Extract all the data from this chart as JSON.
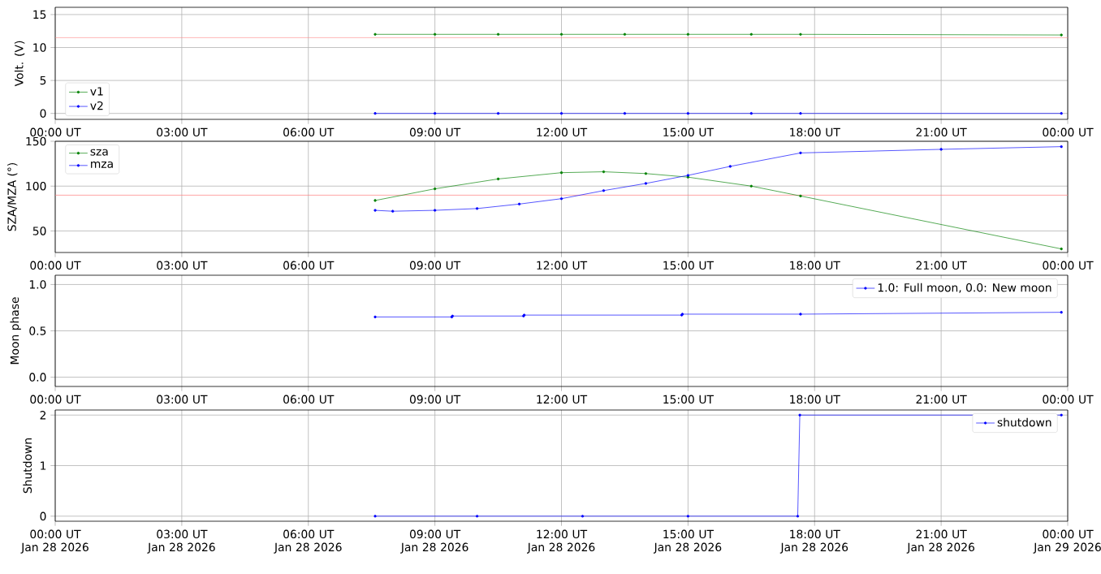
{
  "chart_data": [
    {
      "type": "line",
      "ylabel": "Volt. (V)",
      "xlim": [
        "2026-01-28T00:00",
        "2026-01-29T00:00"
      ],
      "ylim": [
        -0.9,
        16.1
      ],
      "grid": true,
      "legend": "bottom left",
      "marker": "circle",
      "line_style": "solid",
      "xticks": [
        {
          "value": "2026-01-28T00:00",
          "label": "00:00 UT"
        },
        {
          "value": "2026-01-28T03:00",
          "label": "03:00 UT"
        },
        {
          "value": "2026-01-28T06:00",
          "label": "06:00 UT"
        },
        {
          "value": "2026-01-28T09:00",
          "label": "09:00 UT"
        },
        {
          "value": "2026-01-28T12:00",
          "label": "12:00 UT"
        },
        {
          "value": "2026-01-28T15:00",
          "label": "15:00 UT"
        },
        {
          "value": "2026-01-28T18:00",
          "label": "18:00 UT"
        },
        {
          "value": "2026-01-28T21:00",
          "label": "21:00 UT"
        },
        {
          "value": "2026-01-29T00:00",
          "label": "00:00 UT"
        }
      ],
      "yticks": [
        0,
        5,
        10,
        15
      ],
      "ref_lines": [
        {
          "axis": "y",
          "value": 11.5,
          "color": "#ff8080"
        }
      ],
      "series": [
        {
          "name": "v1",
          "color": "#008000",
          "x": [
            "2026-01-28T07:35",
            "2026-01-28T09:00",
            "2026-01-28T10:30",
            "2026-01-28T12:00",
            "2026-01-28T13:30",
            "2026-01-28T15:00",
            "2026-01-28T16:30",
            "2026-01-28T17:40",
            "2026-01-28T23:51"
          ],
          "values": [
            12,
            12,
            12,
            12,
            12,
            12,
            12,
            12,
            11.9
          ]
        },
        {
          "name": "v2",
          "color": "#0000ff",
          "x": [
            "2026-01-28T07:35",
            "2026-01-28T09:00",
            "2026-01-28T10:30",
            "2026-01-28T12:00",
            "2026-01-28T13:30",
            "2026-01-28T15:00",
            "2026-01-28T16:30",
            "2026-01-28T17:40",
            "2026-01-28T23:51"
          ],
          "values": [
            0,
            0,
            0,
            0,
            0,
            0,
            0,
            0,
            0
          ]
        }
      ]
    },
    {
      "type": "line",
      "ylabel": "SZA/MZA (°)",
      "xlim": [
        "2026-01-28T00:00",
        "2026-01-29T00:00"
      ],
      "ylim": [
        26,
        150
      ],
      "grid": true,
      "legend": "top left",
      "marker": "circle",
      "line_style": "solid",
      "xticks": [
        {
          "value": "2026-01-28T00:00",
          "label": "00:00 UT"
        },
        {
          "value": "2026-01-28T03:00",
          "label": "03:00 UT"
        },
        {
          "value": "2026-01-28T06:00",
          "label": "06:00 UT"
        },
        {
          "value": "2026-01-28T09:00",
          "label": "09:00 UT"
        },
        {
          "value": "2026-01-28T12:00",
          "label": "12:00 UT"
        },
        {
          "value": "2026-01-28T15:00",
          "label": "15:00 UT"
        },
        {
          "value": "2026-01-28T18:00",
          "label": "18:00 UT"
        },
        {
          "value": "2026-01-28T21:00",
          "label": "21:00 UT"
        },
        {
          "value": "2026-01-29T00:00",
          "label": "00:00 UT"
        }
      ],
      "yticks": [
        50,
        100,
        150
      ],
      "ref_lines": [
        {
          "axis": "y",
          "value": 90,
          "color": "#ff8080"
        }
      ],
      "series": [
        {
          "name": "sza",
          "color": "#008000",
          "x": [
            "2026-01-28T07:35",
            "2026-01-28T09:00",
            "2026-01-28T10:30",
            "2026-01-28T12:00",
            "2026-01-28T13:00",
            "2026-01-28T14:00",
            "2026-01-28T15:00",
            "2026-01-28T16:30",
            "2026-01-28T17:40",
            "2026-01-28T23:51"
          ],
          "values": [
            84,
            97,
            108,
            115,
            116,
            114,
            110,
            100,
            89,
            30
          ]
        },
        {
          "name": "mza",
          "color": "#0000ff",
          "x": [
            "2026-01-28T07:35",
            "2026-01-28T08:00",
            "2026-01-28T09:00",
            "2026-01-28T10:00",
            "2026-01-28T11:00",
            "2026-01-28T12:00",
            "2026-01-28T13:00",
            "2026-01-28T14:00",
            "2026-01-28T15:00",
            "2026-01-28T16:00",
            "2026-01-28T17:40",
            "2026-01-28T21:00",
            "2026-01-28T23:51"
          ],
          "values": [
            73,
            72,
            73,
            75,
            80,
            86,
            95,
            103,
            112,
            122,
            137,
            141,
            144
          ]
        }
      ]
    },
    {
      "type": "line",
      "ylabel": "Moon phase",
      "xlim": [
        "2026-01-28T00:00",
        "2026-01-29T00:00"
      ],
      "ylim": [
        -0.1,
        1.1
      ],
      "grid": true,
      "legend": "top right",
      "marker": "circle",
      "line_style": "solid",
      "xticks": [
        {
          "value": "2026-01-28T00:00",
          "label": "00:00 UT"
        },
        {
          "value": "2026-01-28T03:00",
          "label": "03:00 UT"
        },
        {
          "value": "2026-01-28T06:00",
          "label": "06:00 UT"
        },
        {
          "value": "2026-01-28T09:00",
          "label": "09:00 UT"
        },
        {
          "value": "2026-01-28T12:00",
          "label": "12:00 UT"
        },
        {
          "value": "2026-01-28T15:00",
          "label": "15:00 UT"
        },
        {
          "value": "2026-01-28T18:00",
          "label": "18:00 UT"
        },
        {
          "value": "2026-01-28T21:00",
          "label": "21:00 UT"
        },
        {
          "value": "2026-01-29T00:00",
          "label": "00:00 UT"
        }
      ],
      "yticks": [
        {
          "value": 0,
          "label": "0.0"
        },
        {
          "value": 0.5,
          "label": "0.5"
        },
        {
          "value": 1,
          "label": "1.0"
        }
      ],
      "series": [
        {
          "name": "1.0: Full moon, 0.0: New moon",
          "color": "#0000ff",
          "x": [
            "2026-01-28T07:35",
            "2026-01-28T09:24",
            "2026-01-28T09:25",
            "2026-01-28T11:06",
            "2026-01-28T11:07",
            "2026-01-28T14:51",
            "2026-01-28T14:52",
            "2026-01-28T17:40",
            "2026-01-28T23:51"
          ],
          "values": [
            0.65,
            0.65,
            0.66,
            0.66,
            0.67,
            0.67,
            0.68,
            0.68,
            0.7
          ]
        }
      ]
    },
    {
      "type": "line",
      "ylabel": "Shutdown",
      "xlim": [
        "2026-01-28T00:00",
        "2026-01-29T00:00"
      ],
      "ylim": [
        -0.1,
        2.1
      ],
      "grid": true,
      "legend": "top right",
      "marker": "circle",
      "line_style": "solid",
      "xticks": [
        {
          "value": "2026-01-28T00:00",
          "label": "00:00 UT Jan 28 2026"
        },
        {
          "value": "2026-01-28T03:00",
          "label": "03:00 UT Jan 28 2026"
        },
        {
          "value": "2026-01-28T06:00",
          "label": "06:00 UT Jan 28 2026"
        },
        {
          "value": "2026-01-28T09:00",
          "label": "09:00 UT Jan 28 2026"
        },
        {
          "value": "2026-01-28T12:00",
          "label": "12:00 UT Jan 28 2026"
        },
        {
          "value": "2026-01-28T15:00",
          "label": "15:00 UT Jan 28 2026"
        },
        {
          "value": "2026-01-28T18:00",
          "label": "18:00 UT Jan 28 2026"
        },
        {
          "value": "2026-01-28T21:00",
          "label": "21:00 UT Jan 28 2026"
        },
        {
          "value": "2026-01-29T00:00",
          "label": "00:00 UT Jan 29 2026"
        }
      ],
      "yticks": [
        0,
        1,
        2
      ],
      "series": [
        {
          "name": "shutdown",
          "color": "#0000ff",
          "x": [
            "2026-01-28T07:35",
            "2026-01-28T10:00",
            "2026-01-28T12:30",
            "2026-01-28T15:00",
            "2026-01-28T17:36",
            "2026-01-28T17:39",
            "2026-01-28T23:51"
          ],
          "values": [
            0,
            0,
            0,
            0,
            0,
            2,
            2
          ]
        }
      ]
    }
  ]
}
